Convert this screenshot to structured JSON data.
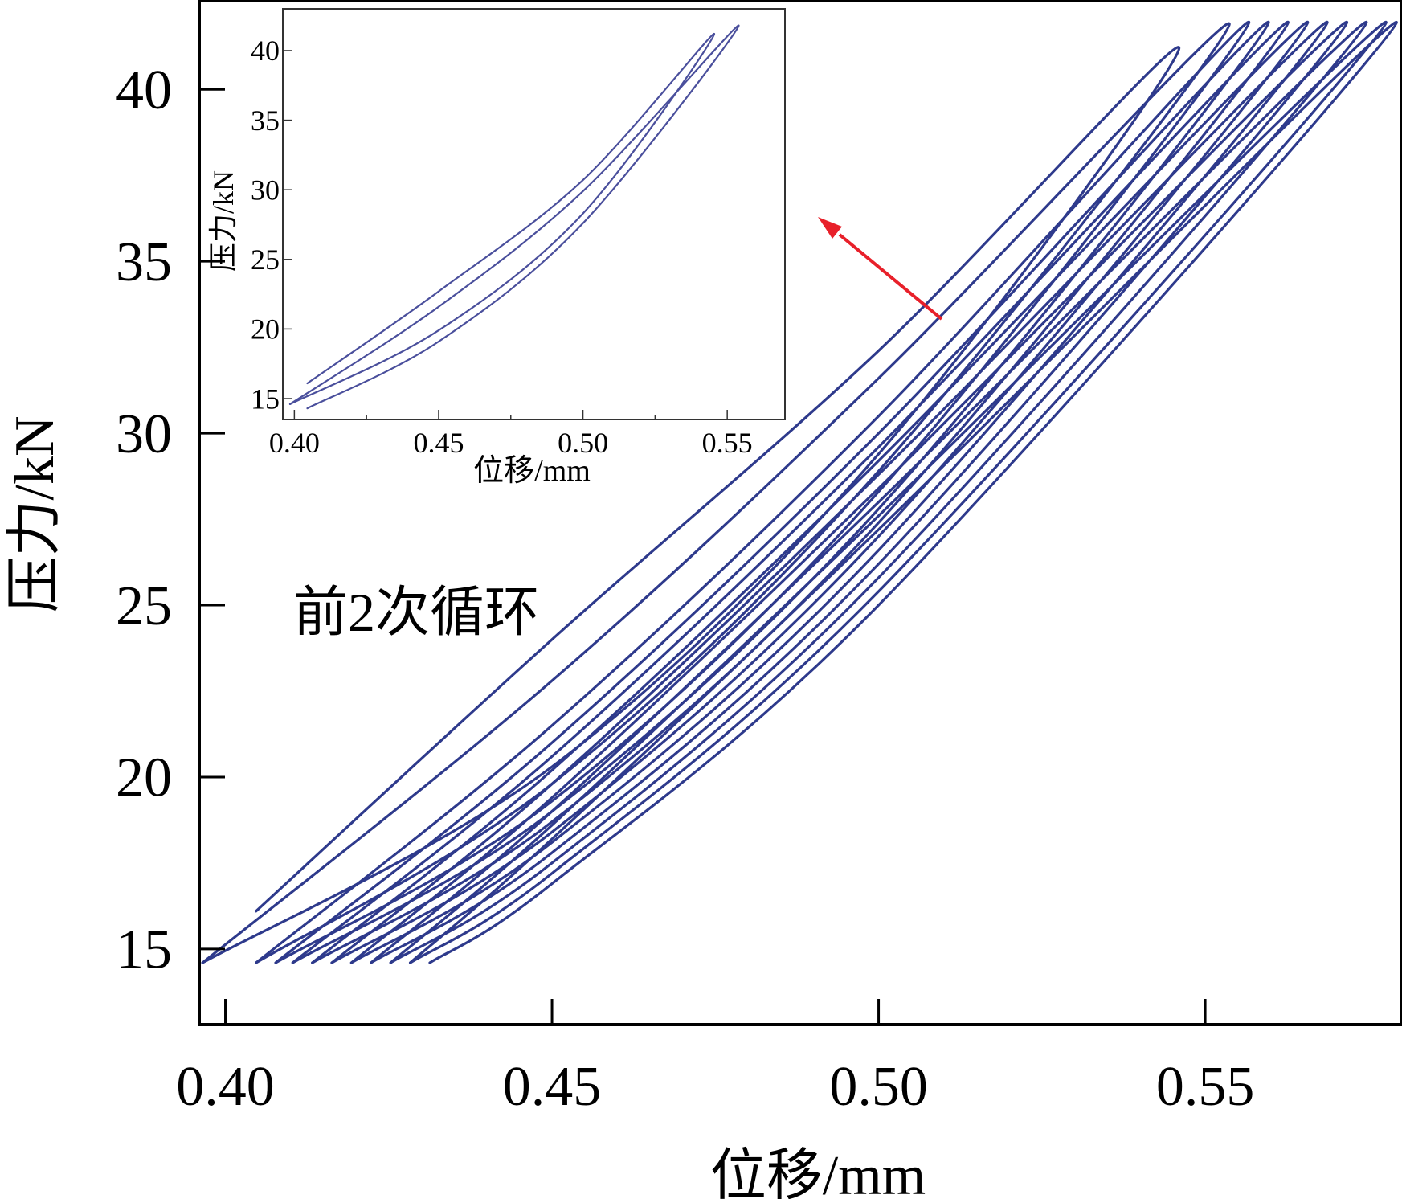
{
  "chart_data": [
    {
      "type": "line",
      "panel": "main",
      "xlabel": "位移/mm",
      "ylabel": "压力/kN",
      "xlim": [
        0.396,
        0.58
      ],
      "ylim": [
        12.8,
        42.6
      ],
      "xticks": [
        0.4,
        0.45,
        0.5,
        0.55
      ],
      "xtick_labels": [
        "0.40",
        "0.45",
        "0.50",
        "0.55"
      ],
      "yticks": [
        15,
        20,
        25,
        30,
        35,
        40
      ],
      "ytick_labels": [
        "15",
        "20",
        "25",
        "30",
        "35",
        "40"
      ],
      "grid": false,
      "line_color": "#2e3a8c",
      "annotation": "前2次循环",
      "arrow_color": "#e8202a",
      "series": [
        {
          "loading_path": [
            [
              0.4047,
              16.1
            ],
            [
              0.45,
              24.0
            ],
            [
              0.5,
              32.4
            ],
            [
              0.546,
              41.2
            ]
          ],
          "unloading_path": [
            [
              0.546,
              41.2
            ],
            [
              0.5,
              29.4
            ],
            [
              0.45,
              20.3
            ],
            [
              0.3965,
              14.6
            ]
          ]
        },
        {
          "loading_path": [
            [
              0.3965,
              14.6
            ],
            [
              0.45,
              22.8
            ],
            [
              0.5,
              31.6
            ],
            [
              0.5537,
              41.9
            ]
          ],
          "unloading_path": [
            [
              0.5537,
              41.9
            ],
            [
              0.5,
              28.9
            ],
            [
              0.45,
              19.8
            ],
            [
              0.4047,
              14.6
            ]
          ]
        },
        {
          "loading_path": [
            [
              0.4047,
              14.6
            ],
            [
              0.45,
              21.5
            ],
            [
              0.5,
              30.5
            ],
            [
              0.5567,
              41.95
            ]
          ],
          "unloading_path": [
            [
              0.5567,
              41.95
            ],
            [
              0.5,
              28.3
            ],
            [
              0.45,
              19.3
            ],
            [
              0.4077,
              14.6
            ]
          ]
        },
        {
          "loading_path": [
            [
              0.4077,
              14.6
            ],
            [
              0.45,
              21.0
            ],
            [
              0.5,
              30.0
            ],
            [
              0.5597,
              41.95
            ]
          ],
          "unloading_path": [
            [
              0.5597,
              41.95
            ],
            [
              0.5,
              27.8
            ],
            [
              0.45,
              19.0
            ],
            [
              0.4103,
              14.6
            ]
          ]
        },
        {
          "loading_path": [
            [
              0.4103,
              14.6
            ],
            [
              0.45,
              20.6
            ],
            [
              0.5,
              29.6
            ],
            [
              0.5627,
              41.95
            ]
          ],
          "unloading_path": [
            [
              0.5627,
              41.95
            ],
            [
              0.5,
              27.4
            ],
            [
              0.45,
              18.7
            ],
            [
              0.4133,
              14.6
            ]
          ]
        },
        {
          "loading_path": [
            [
              0.4133,
              14.6
            ],
            [
              0.45,
              20.2
            ],
            [
              0.5,
              29.2
            ],
            [
              0.5657,
              41.95
            ]
          ],
          "unloading_path": [
            [
              0.5657,
              41.95
            ],
            [
              0.5,
              27.0
            ],
            [
              0.45,
              18.4
            ],
            [
              0.4163,
              14.6
            ]
          ]
        },
        {
          "loading_path": [
            [
              0.4163,
              14.6
            ],
            [
              0.45,
              19.8
            ],
            [
              0.5,
              28.8
            ],
            [
              0.5687,
              41.95
            ]
          ],
          "unloading_path": [
            [
              0.5687,
              41.95
            ],
            [
              0.5,
              26.6
            ],
            [
              0.45,
              18.1
            ],
            [
              0.4193,
              14.6
            ]
          ]
        },
        {
          "loading_path": [
            [
              0.4193,
              14.6
            ],
            [
              0.45,
              19.4
            ],
            [
              0.5,
              28.4
            ],
            [
              0.5717,
              41.95
            ]
          ],
          "unloading_path": [
            [
              0.5717,
              41.95
            ],
            [
              0.5,
              26.2
            ],
            [
              0.45,
              17.8
            ],
            [
              0.4223,
              14.6
            ]
          ]
        },
        {
          "loading_path": [
            [
              0.4223,
              14.6
            ],
            [
              0.45,
              19.0
            ],
            [
              0.5,
              28.0
            ],
            [
              0.5747,
              41.95
            ]
          ],
          "unloading_path": [
            [
              0.5747,
              41.95
            ],
            [
              0.5,
              25.8
            ],
            [
              0.45,
              17.5
            ],
            [
              0.4253,
              14.6
            ]
          ]
        },
        {
          "loading_path": [
            [
              0.4253,
              14.6
            ],
            [
              0.45,
              18.6
            ],
            [
              0.5,
              27.6
            ],
            [
              0.5777,
              41.95
            ]
          ],
          "unloading_path": [
            [
              0.5777,
              41.95
            ],
            [
              0.5,
              25.4
            ],
            [
              0.45,
              17.2
            ],
            [
              0.4283,
              14.6
            ]
          ]
        },
        {
          "loading_path": [
            [
              0.4283,
              14.6
            ],
            [
              0.45,
              18.2
            ],
            [
              0.5,
              27.2
            ],
            [
              0.5793,
              41.95
            ]
          ],
          "unloading_path": [
            [
              0.5793,
              41.95
            ],
            [
              0.5,
              25.0
            ],
            [
              0.45,
              16.9
            ],
            [
              0.4313,
              14.6
            ]
          ]
        }
      ]
    },
    {
      "type": "line",
      "panel": "inset",
      "xlabel": "位移/mm",
      "ylabel": "压力/kN",
      "xlim": [
        0.396,
        0.57
      ],
      "ylim": [
        13.5,
        43
      ],
      "xticks": [
        0.4,
        0.45,
        0.5,
        0.55
      ],
      "xtick_labels": [
        "0.40",
        "0.45",
        "0.50",
        "0.55"
      ],
      "yticks": [
        15,
        20,
        25,
        30,
        35,
        40
      ],
      "ytick_labels": [
        "15",
        "20",
        "25",
        "30",
        "35",
        "40"
      ],
      "grid": false,
      "line_color": "#4a4f9c",
      "series": [
        {
          "loading_path": [
            [
              0.4045,
              16.1
            ],
            [
              0.45,
              22.7
            ],
            [
              0.5,
              30.7
            ],
            [
              0.5455,
              41.2
            ]
          ],
          "unloading_path": [
            [
              0.5455,
              41.2
            ],
            [
              0.5,
              28.3
            ],
            [
              0.45,
              19.9
            ],
            [
              0.3985,
              14.6
            ]
          ]
        },
        {
          "loading_path": [
            [
              0.3985,
              14.6
            ],
            [
              0.45,
              21.6
            ],
            [
              0.5,
              29.9
            ],
            [
              0.554,
              41.8
            ]
          ],
          "unloading_path": [
            [
              0.554,
              41.8
            ],
            [
              0.5,
              27.6
            ],
            [
              0.45,
              19.1
            ],
            [
              0.4045,
              14.3
            ]
          ]
        }
      ]
    }
  ]
}
